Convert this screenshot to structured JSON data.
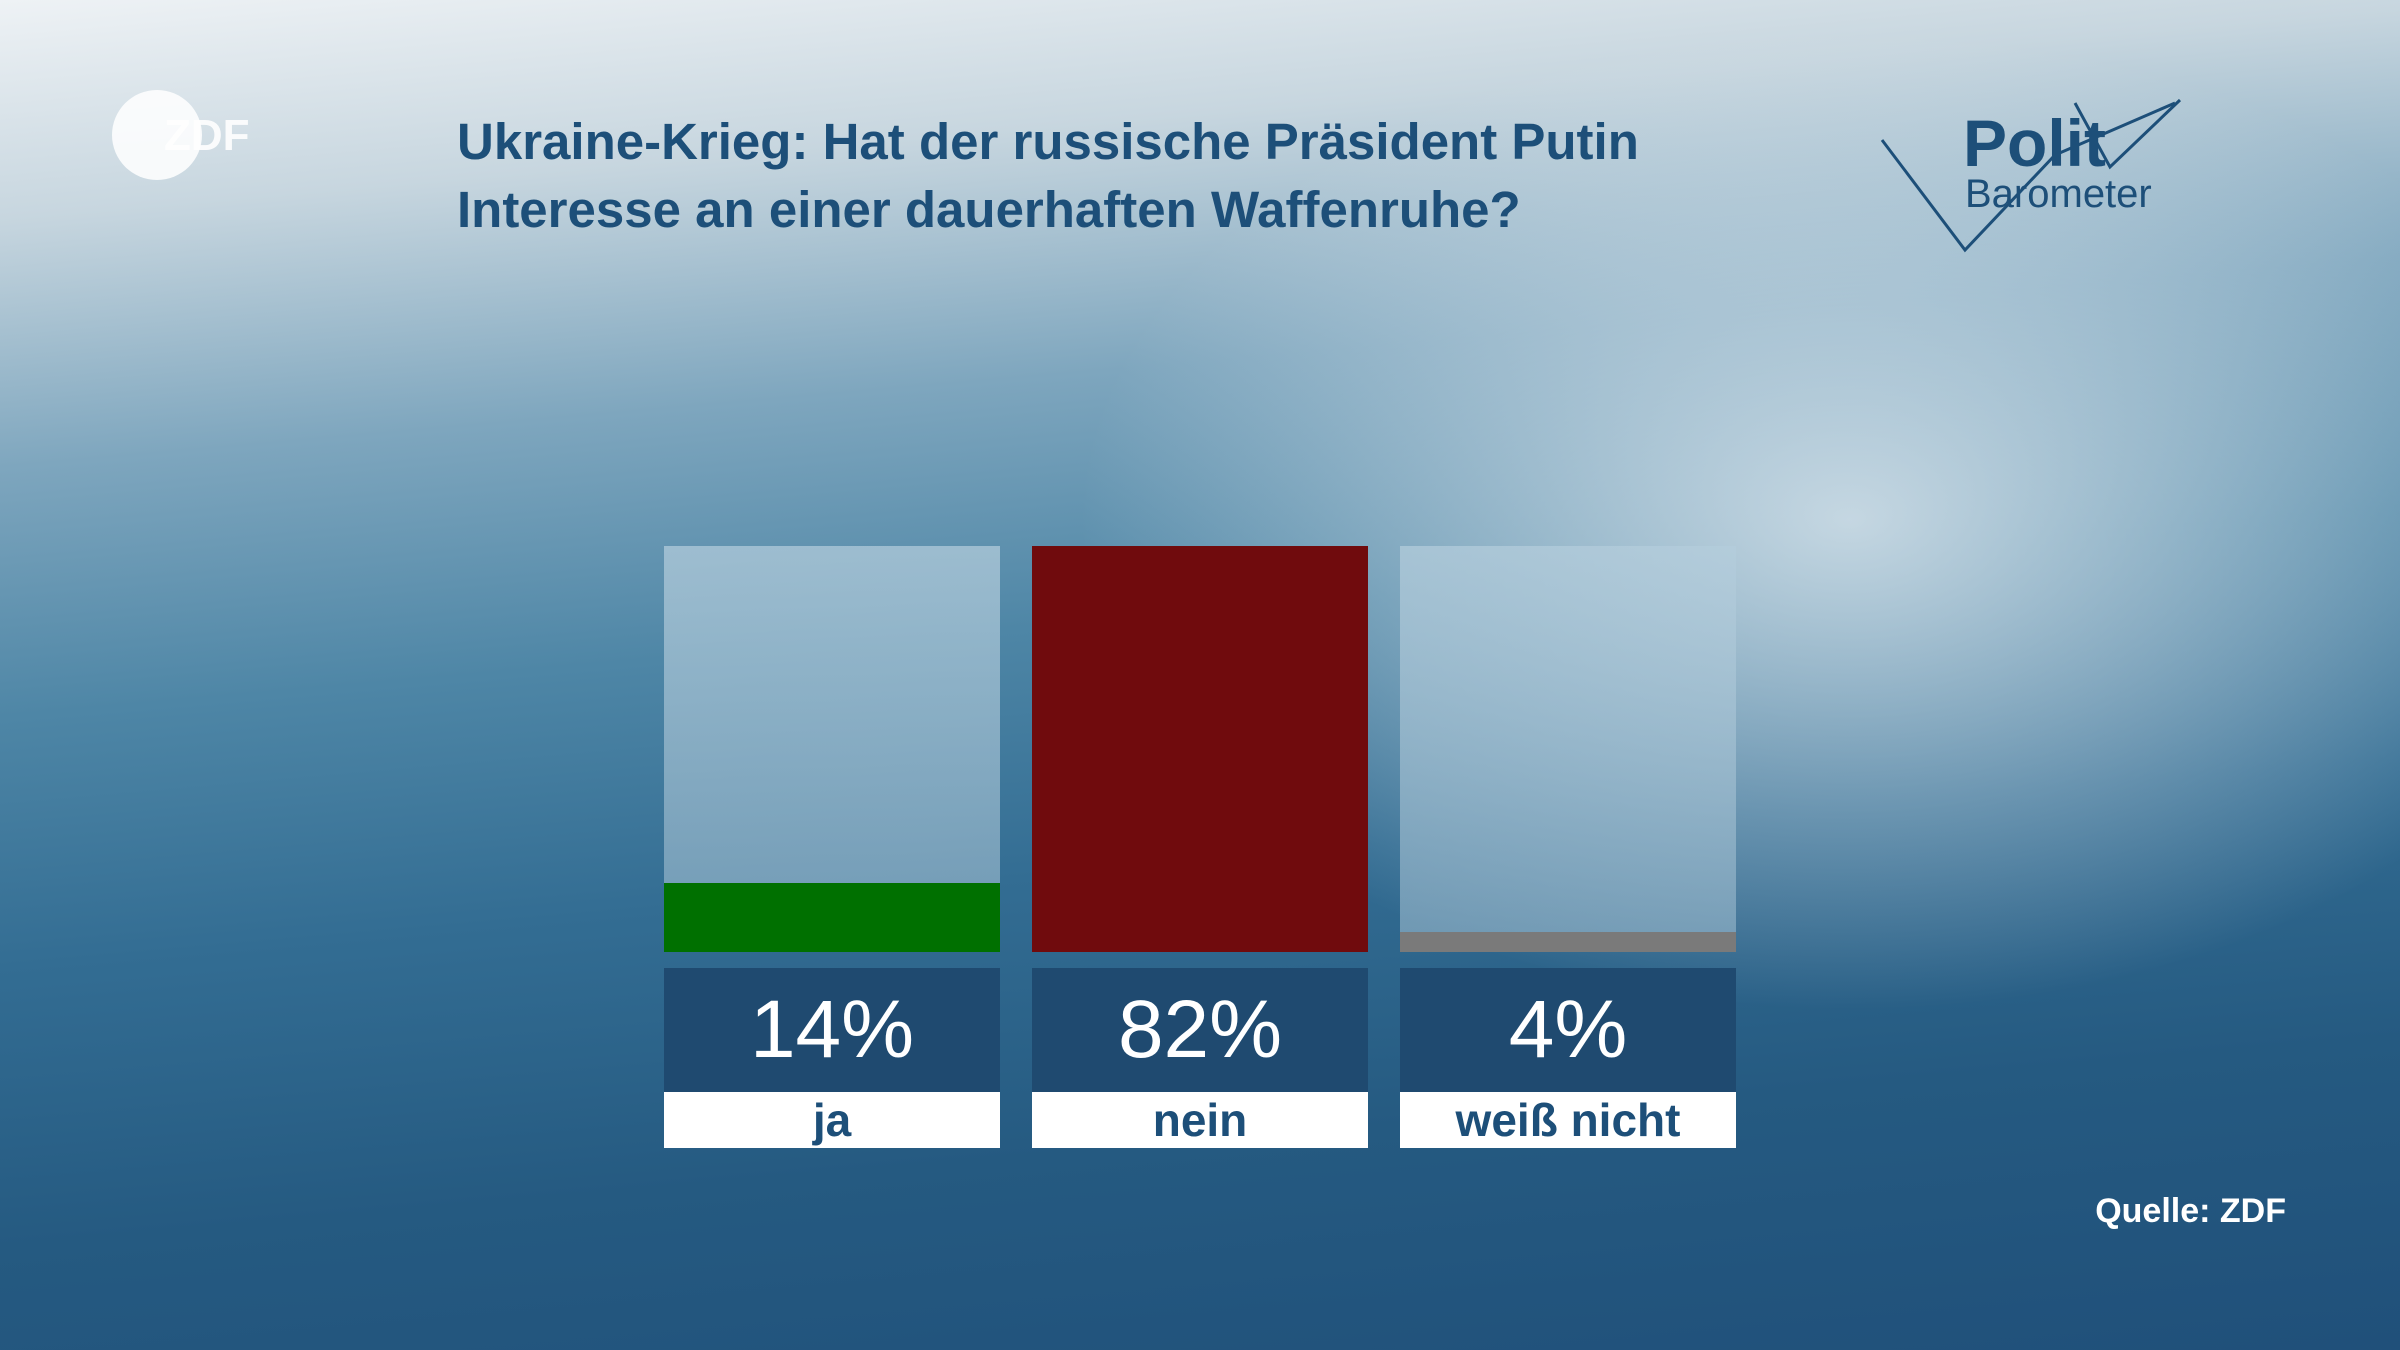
{
  "logo": {
    "text": "ZDF",
    "icon": "zdf-logo-icon"
  },
  "brand": {
    "word1": "Polit",
    "word2": "Barometer",
    "icon": "politbarometer-zigzag-icon"
  },
  "chart_data": {
    "type": "bar",
    "title": "Ukraine-Krieg: Hat der russische Präsident Putin Interesse an einer dauerhaften Waffenruhe?",
    "title_lines": [
      "Ukraine-Krieg: Hat der russische Präsident Putin",
      "Interesse an einer dauerhaften Waffenruhe?"
    ],
    "categories": [
      "ja",
      "nein",
      "weiß nicht"
    ],
    "values": [
      14,
      82,
      4
    ],
    "value_labels": [
      "14%",
      "82%",
      "4%"
    ],
    "unit": "%",
    "ylim": [
      0,
      82
    ],
    "colors": [
      "#007000",
      "#700b0d",
      "#7a7a7a"
    ],
    "grid": false,
    "legend": "none"
  },
  "source": "Quelle: ZDF",
  "colors": {
    "title": "#1d4f79",
    "value_box": "#1f4a70"
  }
}
